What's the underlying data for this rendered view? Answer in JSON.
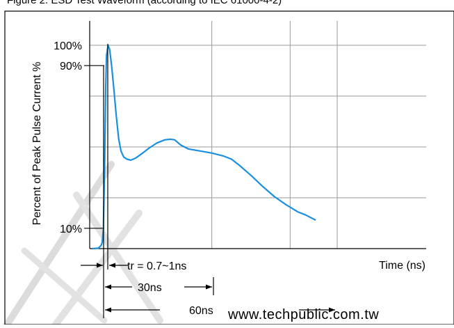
{
  "header_text": "Figure 2. ESD Test Waveform (according to IEC 61000-4-2)",
  "watermark_text": "www.techpublic.com.tw",
  "chart_data": {
    "type": "line",
    "title": "",
    "xlabel": "Time (ns)",
    "ylabel": "Percent of Peak Pulse Current %",
    "xlim": [
      0,
      80
    ],
    "ylim": [
      0,
      100
    ],
    "yticks": [
      {
        "value": 100,
        "label": "100%"
      },
      {
        "value": 90,
        "label": "90%"
      },
      {
        "value": 10,
        "label": "10%"
      }
    ],
    "grid": true,
    "grid_x": [
      20,
      40,
      60
    ],
    "grid_y": [
      25,
      50,
      75,
      100
    ],
    "series": [
      {
        "color": "#1a8fe0",
        "points": [
          [
            -2.5,
            0
          ],
          [
            -1,
            0.2
          ],
          [
            -0.3,
            1.5
          ],
          [
            0,
            3
          ],
          [
            0.3,
            10
          ],
          [
            0.6,
            40
          ],
          [
            0.9,
            80
          ],
          [
            1.1,
            95
          ],
          [
            1.5,
            100
          ],
          [
            1.9,
            98
          ],
          [
            2.4,
            90
          ],
          [
            3,
            78
          ],
          [
            3.6,
            65
          ],
          [
            4.2,
            54
          ],
          [
            4.8,
            48
          ],
          [
            5.5,
            45
          ],
          [
            6.3,
            44
          ],
          [
            7.3,
            43.5
          ],
          [
            8.5,
            44.5
          ],
          [
            10,
            46.5
          ],
          [
            12,
            49.5
          ],
          [
            14,
            52
          ],
          [
            16,
            53.5
          ],
          [
            17.5,
            53.8
          ],
          [
            18.5,
            53.5
          ],
          [
            20,
            51
          ],
          [
            22,
            49
          ],
          [
            25,
            48
          ],
          [
            28,
            47
          ],
          [
            31,
            45.5
          ],
          [
            33,
            44
          ],
          [
            35,
            41
          ],
          [
            38,
            36
          ],
          [
            41,
            30.5
          ],
          [
            44,
            25.5
          ],
          [
            47,
            21.5
          ],
          [
            50,
            18
          ],
          [
            52,
            16.5
          ],
          [
            54.5,
            14
          ]
        ]
      }
    ],
    "annotations": [
      {
        "text": "tr = 0.7~1ns",
        "from": 0.6,
        "to": 1.1
      },
      {
        "text": "30ns",
        "from": 0.6,
        "to": 30
      },
      {
        "text": "60ns",
        "from": 0.6,
        "to": 60
      }
    ]
  }
}
